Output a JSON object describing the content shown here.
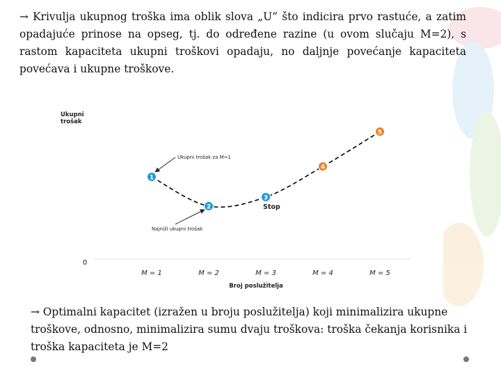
{
  "paragraphs": [
    "→ Krivulja ukupnog troška ima oblik slova „U” što indicira prvo rastuće, a zatim opadajuće prinose na opseg, tj. do određene razine (u ovom slučaju M=2), s rastom kapaciteta ukupni troškovi opadaju, no daljnje povećanje kapaciteta povećava i ukupne troškove.",
    "→ Optimalni kapacitet (izražen u broju poslužitelja) koji minimalizira ukupne troškove, odnosno, minimalizira sumu dvaju troškova: troška čekanja korisnika i troška kapaciteta je M=2"
  ],
  "chart_data": {
    "type": "line",
    "y_label": "Ukupni trošak",
    "x_label": "Broj poslužitelja",
    "categories": [
      "M = 1",
      "M = 2",
      "M = 3",
      "M = 4",
      "M = 5"
    ],
    "values": [
      5.9,
      3.8,
      4.45,
      6.65,
      9.15
    ],
    "point_labels": [
      "1",
      "2",
      "3",
      "4",
      "5"
    ],
    "point_colors": [
      "#1e9bd7",
      "#1e9bd7",
      "#1e9bd7",
      "#e8812a",
      "#e8812a"
    ],
    "line_color": "#000000",
    "dashed": true,
    "ylim": [
      0,
      10
    ],
    "yticks": [
      0
    ],
    "annotations": [
      "Ukupni trošak za M=1",
      "Najniži ukupni trošak",
      "Stop"
    ]
  }
}
